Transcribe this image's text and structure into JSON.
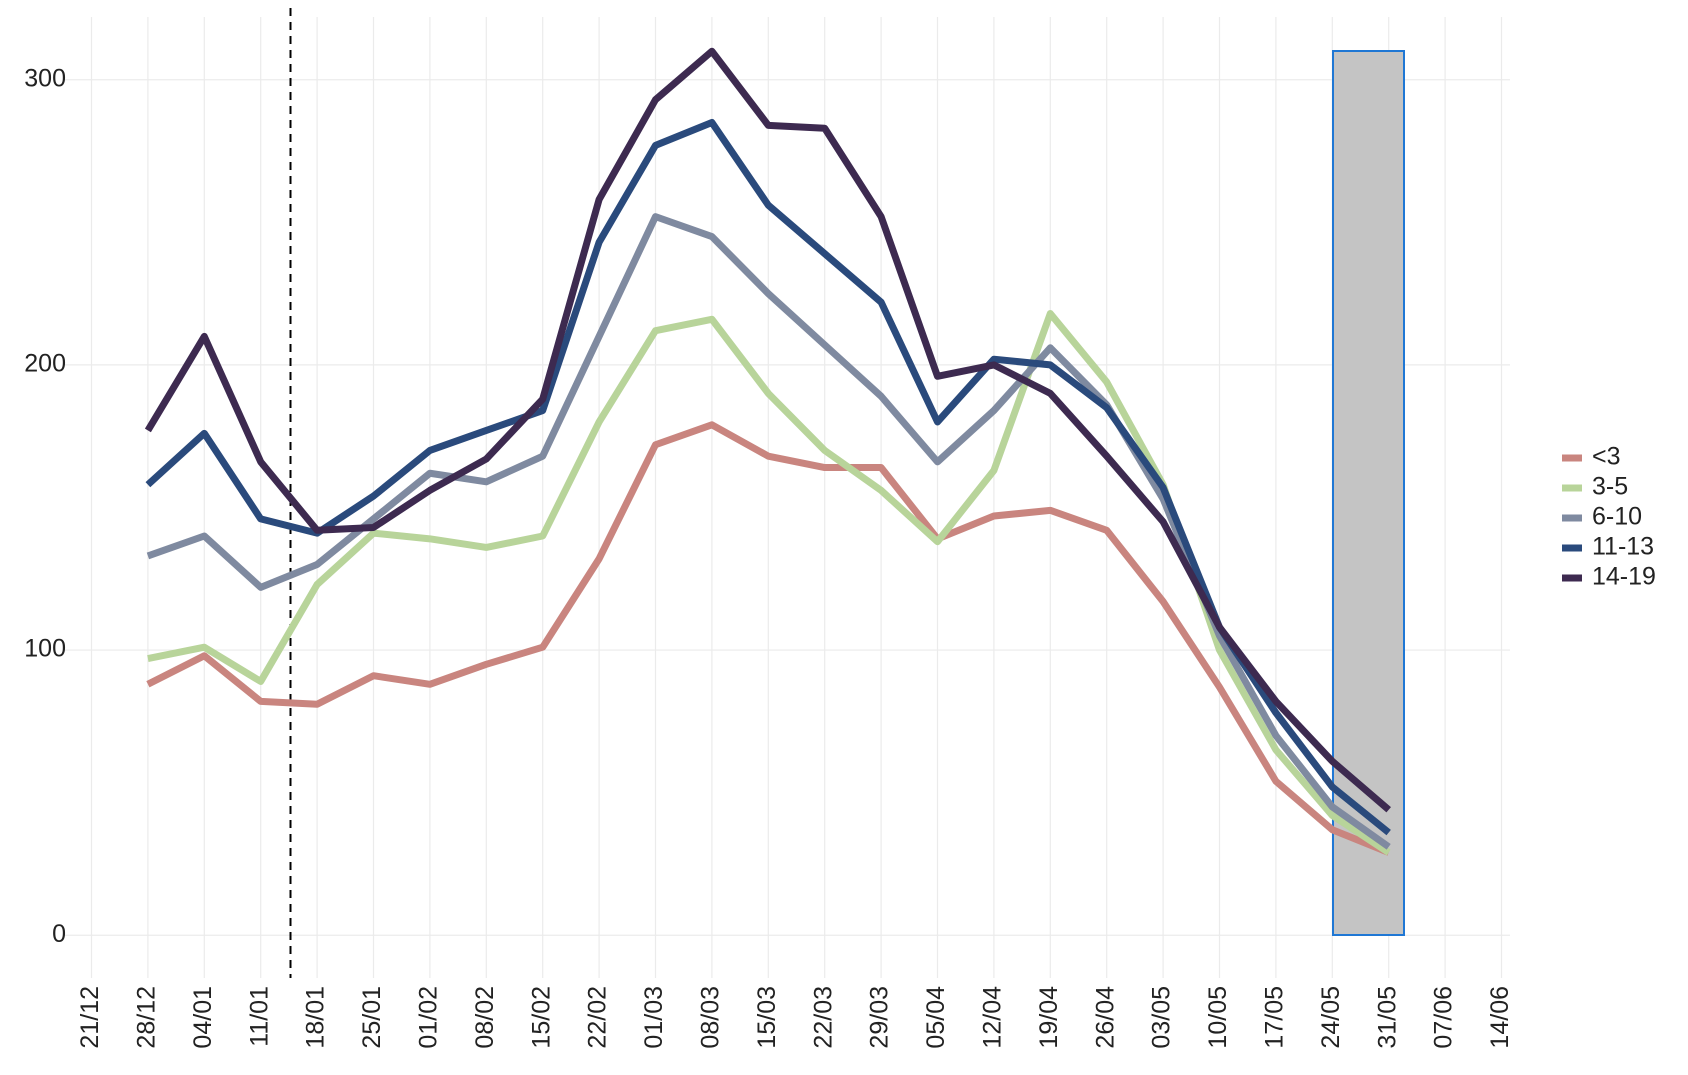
{
  "chart_data": {
    "type": "line",
    "categories": [
      "21/12",
      "28/12",
      "04/01",
      "11/01",
      "18/01",
      "25/01",
      "01/02",
      "08/02",
      "15/02",
      "22/02",
      "01/03",
      "08/03",
      "15/03",
      "22/03",
      "29/03",
      "05/04",
      "12/04",
      "19/04",
      "26/04",
      "03/05",
      "10/05",
      "17/05",
      "24/05",
      "31/05",
      "07/06",
      "14/06"
    ],
    "series": [
      {
        "name": "<3",
        "color": "#c9857f",
        "values": [
          null,
          88,
          98,
          82,
          81,
          91,
          88,
          95,
          101,
          132,
          172,
          179,
          168,
          164,
          164,
          139,
          147,
          149,
          142,
          117,
          87,
          54,
          37,
          29,
          null,
          null
        ]
      },
      {
        "name": "3-5",
        "color": "#b8d49a",
        "values": [
          null,
          97,
          101,
          89,
          123,
          141,
          139,
          136,
          140,
          180,
          212,
          216,
          190,
          170,
          156,
          138,
          163,
          218,
          194,
          158,
          100,
          65,
          42,
          29,
          null,
          null
        ]
      },
      {
        "name": "6-10",
        "color": "#7f8aa0",
        "values": [
          null,
          133,
          140,
          122,
          130,
          146,
          162,
          159,
          168,
          210,
          252,
          245,
          225,
          207,
          189,
          166,
          184,
          206,
          186,
          153,
          105,
          70,
          45,
          31,
          null,
          null
        ]
      },
      {
        "name": "11-13",
        "color": "#2a4a7c",
        "values": [
          null,
          158,
          176,
          146,
          141,
          154,
          170,
          177,
          184,
          243,
          277,
          285,
          256,
          239,
          222,
          180,
          202,
          200,
          185,
          157,
          108,
          78,
          52,
          36,
          null,
          null
        ]
      },
      {
        "name": "14-19",
        "color": "#3d2a50",
        "values": [
          null,
          177,
          210,
          166,
          142,
          143,
          156,
          167,
          188,
          258,
          293,
          310,
          284,
          283,
          252,
          196,
          200,
          190,
          168,
          145,
          108,
          82,
          61,
          44,
          null,
          null
        ]
      }
    ],
    "ylim": [
      -15,
      322
    ],
    "yticks": [
      0,
      100,
      200,
      300
    ],
    "grid": true,
    "legend": "right"
  }
}
